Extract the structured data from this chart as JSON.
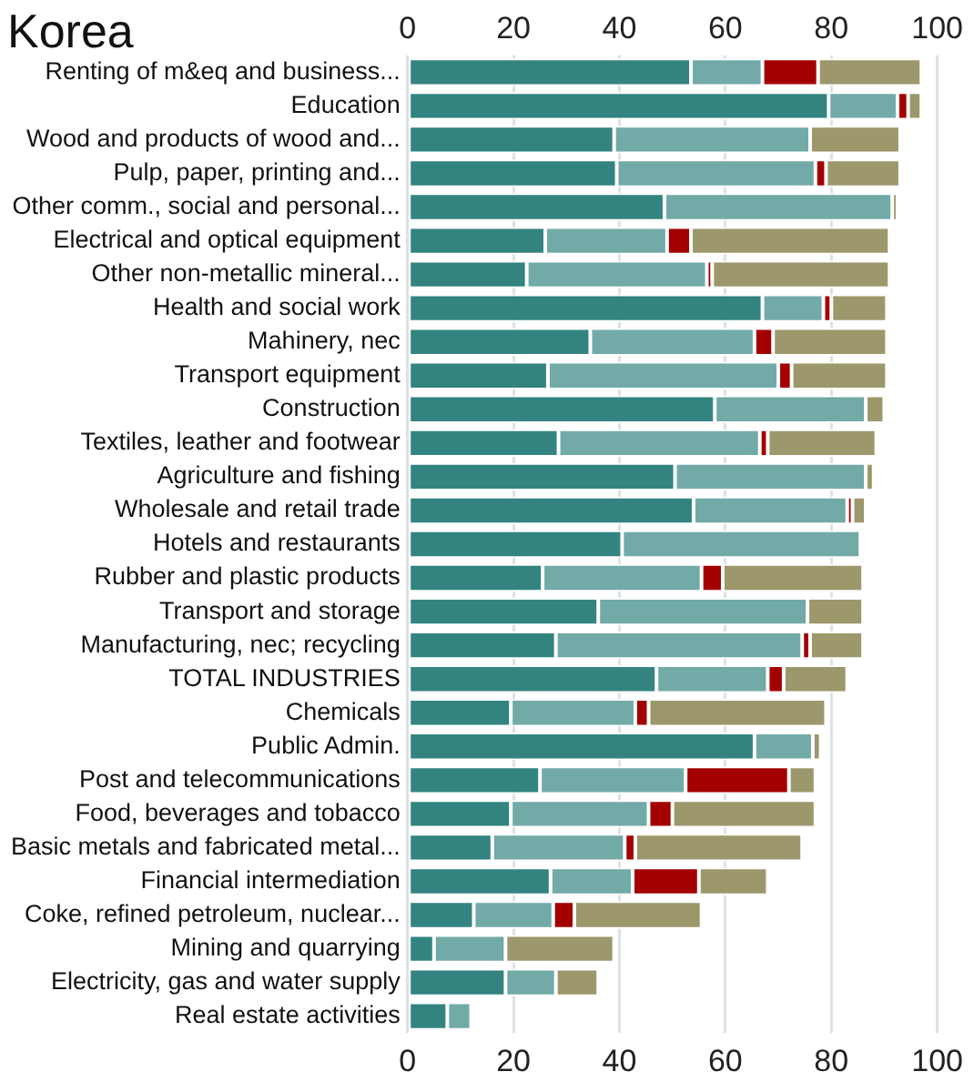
{
  "chart_data": {
    "type": "bar",
    "orientation": "horizontal",
    "stacked": true,
    "title": "Korea",
    "categories": [
      "Renting of m&eq and business...",
      "Education",
      "Wood and products of wood and...",
      "Pulp, paper, printing and...",
      "Other comm., social and personal...",
      "Electrical and optical equipment",
      "Other non-metallic mineral...",
      "Health and social work",
      "Mahinery, nec",
      "Transport equipment",
      "Construction",
      "Textiles, leather and footwear",
      "Agriculture and fishing",
      "Wholesale and retail trade",
      "Hotels and restaurants",
      "Rubber and plastic products",
      "Transport and storage",
      "Manufacturing, nec; recycling",
      "TOTAL INDUSTRIES",
      "Chemicals",
      "Public Admin.",
      "Post and telecommunications",
      "Food, beverages and tobacco",
      "Basic metals and fabricated metal...",
      "Financial intermediation",
      "Coke, refined petroleum, nuclear...",
      "Mining and quarrying",
      "Electricity, gas and water supply",
      "Real estate activities"
    ],
    "series": [
      {
        "color": "#338480",
        "values": [
          53.5,
          79.5,
          39,
          39.5,
          48.5,
          26,
          22.5,
          67,
          34.5,
          26.5,
          58,
          28.5,
          50.5,
          54,
          40.5,
          25.5,
          36,
          28,
          47,
          19.5,
          65.5,
          25,
          19.5,
          16,
          27,
          12.5,
          5,
          18.5,
          7.5
        ]
      },
      {
        "color": "#72aaa8",
        "values": [
          13.5,
          13,
          37,
          37.5,
          43,
          23,
          34,
          11.5,
          31,
          43.5,
          28.5,
          38,
          36,
          29,
          45,
          30,
          39.5,
          46.5,
          21,
          23.5,
          11,
          27.5,
          26,
          25,
          15.5,
          15,
          13.5,
          9.5,
          4.5
        ]
      },
      {
        "color": "#a30000",
        "values": [
          10.5,
          2,
          null,
          2,
          null,
          4.5,
          1,
          1.5,
          3.5,
          2.5,
          null,
          1.5,
          null,
          1,
          null,
          4,
          null,
          1.5,
          3,
          2.5,
          null,
          19.5,
          4.5,
          2,
          12.5,
          4,
          null,
          null,
          null
        ]
      },
      {
        "color": "#9c986b",
        "values": [
          19.5,
          2.5,
          17,
          14,
          1,
          37.5,
          33.5,
          10.5,
          21.5,
          18,
          3.5,
          20.5,
          1.5,
          2.5,
          null,
          26.5,
          10.5,
          10,
          12,
          33.5,
          1.5,
          5,
          27,
          31.5,
          13,
          24,
          20.5,
          8,
          null
        ]
      }
    ],
    "xlim": [
      0,
      100
    ],
    "xticks": [
      0,
      20,
      40,
      60,
      80,
      100
    ],
    "x2lim": [
      0,
      100
    ],
    "x2ticks": [
      0,
      20,
      40,
      60,
      80,
      100
    ],
    "grid": "x",
    "legend": false
  }
}
